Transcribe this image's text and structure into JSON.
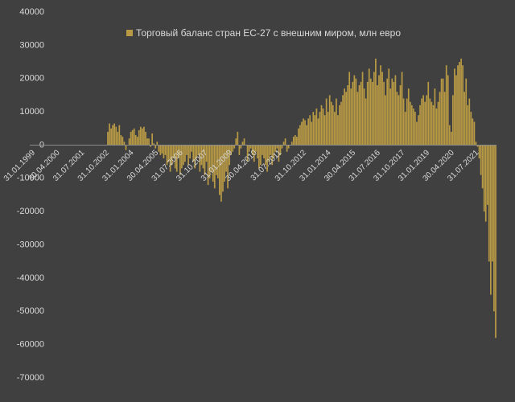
{
  "chart_data": {
    "type": "bar",
    "series": [
      {
        "name": "Торговый баланс стран ЕС-27 с внешним миром, млн евро",
        "color": "#b89a45",
        "values": [
          0,
          0,
          0,
          0,
          0,
          0,
          0,
          0,
          0,
          0,
          0,
          0,
          0,
          0,
          0,
          0,
          0,
          0,
          0,
          0,
          0,
          0,
          0,
          0,
          0,
          0,
          0,
          0,
          0,
          0,
          0,
          0,
          0,
          0,
          0,
          0,
          0,
          0,
          0,
          0,
          0,
          0,
          0,
          0,
          0,
          0,
          0,
          4000,
          6500,
          5000,
          6000,
          6500,
          5500,
          4000,
          6000,
          3000,
          2500,
          1000,
          -1500,
          0,
          2000,
          4000,
          4500,
          5000,
          3000,
          2500,
          4500,
          5500,
          5000,
          5500,
          4000,
          2000,
          2000,
          -500,
          3500,
          500,
          -1000,
          1000,
          -2000,
          -3000,
          -2500,
          -4000,
          -3000,
          -6000,
          -5000,
          -8000,
          -6000,
          -4000,
          -7000,
          -8000,
          -4000,
          -9000,
          -7000,
          -6000,
          -5000,
          -3000,
          -6000,
          -4000,
          -2000,
          -5000,
          -7000,
          -4000,
          -3000,
          -8000,
          -6000,
          -7000,
          -9000,
          -5000,
          -12000,
          -10000,
          -8000,
          -11000,
          -13000,
          -9000,
          -10000,
          -15000,
          -17000,
          -14000,
          -11000,
          -8000,
          -13000,
          -6000,
          -3000,
          -2000,
          -1000,
          2000,
          4000,
          -3000,
          -1000,
          1000,
          2000,
          0,
          -5000,
          -2000,
          -1000,
          -3000,
          -5000,
          -2000,
          -4000,
          -7000,
          -6000,
          -3000,
          -4000,
          -6000,
          -8000,
          -5000,
          -3000,
          -6000,
          -4000,
          -2000,
          -1000,
          -5000,
          -3000,
          -1000,
          1000,
          2000,
          -2000,
          -1000,
          0,
          1000,
          2500,
          3000,
          2500,
          5000,
          6000,
          7000,
          8000,
          7500,
          6000,
          8000,
          9000,
          7000,
          10000,
          9000,
          11000,
          8000,
          10000,
          12000,
          11000,
          9000,
          14000,
          10000,
          15000,
          13000,
          12000,
          10000,
          14000,
          9000,
          12000,
          13000,
          15000,
          17000,
          16000,
          18000,
          22000,
          17000,
          19000,
          21000,
          20000,
          16000,
          18000,
          19000,
          22000,
          17000,
          14000,
          19000,
          23000,
          20000,
          19000,
          22000,
          26000,
          18000,
          21000,
          24000,
          22000,
          19000,
          15000,
          20000,
          23000,
          17000,
          20000,
          19000,
          21000,
          16000,
          15000,
          18000,
          22000,
          14000,
          10000,
          14000,
          17000,
          13000,
          12000,
          11000,
          10000,
          7000,
          9000,
          12000,
          14000,
          15000,
          13000,
          15000,
          19000,
          14000,
          13000,
          12000,
          17000,
          11000,
          13000,
          16000,
          20000,
          20000,
          16000,
          24000,
          21000,
          6000,
          4000,
          15000,
          23000,
          21000,
          24000,
          25000,
          26000,
          24000,
          16000,
          20000,
          12000,
          14000,
          10000,
          8000,
          7000,
          1000,
          -500,
          -4000,
          -9000,
          -13000,
          -20000,
          -23000,
          -18000,
          -35000,
          -45000,
          -35000,
          -50000,
          -58000
        ]
      }
    ],
    "categories": [
      "31.01.1999",
      null,
      null,
      null,
      null,
      null,
      null,
      null,
      null,
      null,
      null,
      null,
      null,
      null,
      null,
      "30.04.2000",
      null,
      null,
      null,
      null,
      null,
      null,
      null,
      null,
      null,
      null,
      null,
      null,
      null,
      null,
      "31.07.2001",
      null,
      null,
      null,
      null,
      null,
      null,
      null,
      null,
      null,
      null,
      null,
      null,
      null,
      null,
      "31.10.2002",
      null,
      null,
      null,
      null,
      null,
      null,
      null,
      null,
      null,
      null,
      null,
      null,
      null,
      null,
      "31.01.2004",
      null,
      null,
      null,
      null,
      null,
      null,
      null,
      null,
      null,
      null,
      null,
      null,
      null,
      null,
      "30.04.2005",
      null,
      null,
      null,
      null,
      null,
      null,
      null,
      null,
      null,
      null,
      null,
      null,
      null,
      null,
      "31.07.2006",
      null,
      null,
      null,
      null,
      null,
      null,
      null,
      null,
      null,
      null,
      null,
      null,
      null,
      null,
      "31.10.2007",
      null,
      null,
      null,
      null,
      null,
      null,
      null,
      null,
      null,
      null,
      null,
      null,
      null,
      null,
      "31.01.2009",
      null,
      null,
      null,
      null,
      null,
      null,
      null,
      null,
      null,
      null,
      null,
      null,
      null,
      null,
      "30.04.2010",
      null,
      null,
      null,
      null,
      null,
      null,
      null,
      null,
      null,
      null,
      null,
      null,
      null,
      null,
      "31.07.2011",
      null,
      null,
      null,
      null,
      null,
      null,
      null,
      null,
      null,
      null,
      null,
      null,
      null,
      null,
      "31.10.2012",
      null,
      null,
      null,
      null,
      null,
      null,
      null,
      null,
      null,
      null,
      null,
      null,
      null,
      null,
      "31.01.2014",
      null,
      null,
      null,
      null,
      null,
      null,
      null,
      null,
      null,
      null,
      null,
      null,
      null,
      null,
      "30.04.2015",
      null,
      null,
      null,
      null,
      null,
      null,
      null,
      null,
      null,
      null,
      null,
      null,
      null,
      null,
      "31.07.2016",
      null,
      null,
      null,
      null,
      null,
      null,
      null,
      null,
      null,
      null,
      null,
      null,
      null,
      null,
      "31.10.2017",
      null,
      null,
      null,
      null,
      null,
      null,
      null,
      null,
      null,
      null,
      null,
      null,
      null,
      null,
      "31.01.2019",
      null,
      null,
      null,
      null,
      null,
      null,
      null,
      null,
      null,
      null,
      null,
      null,
      null,
      null,
      "30.04.2020",
      null,
      null,
      null,
      null,
      null,
      null,
      null,
      null,
      null,
      null,
      null,
      null,
      null,
      null,
      "31.07.2021",
      null,
      null,
      null,
      null,
      null,
      null,
      null,
      null,
      null,
      null,
      null,
      null,
      null
    ],
    "ylim": [
      -70000,
      40000
    ],
    "yticks": [
      -70000,
      -60000,
      -50000,
      -40000,
      -30000,
      -20000,
      -10000,
      0,
      10000,
      20000,
      30000,
      40000
    ],
    "legend": "top"
  }
}
